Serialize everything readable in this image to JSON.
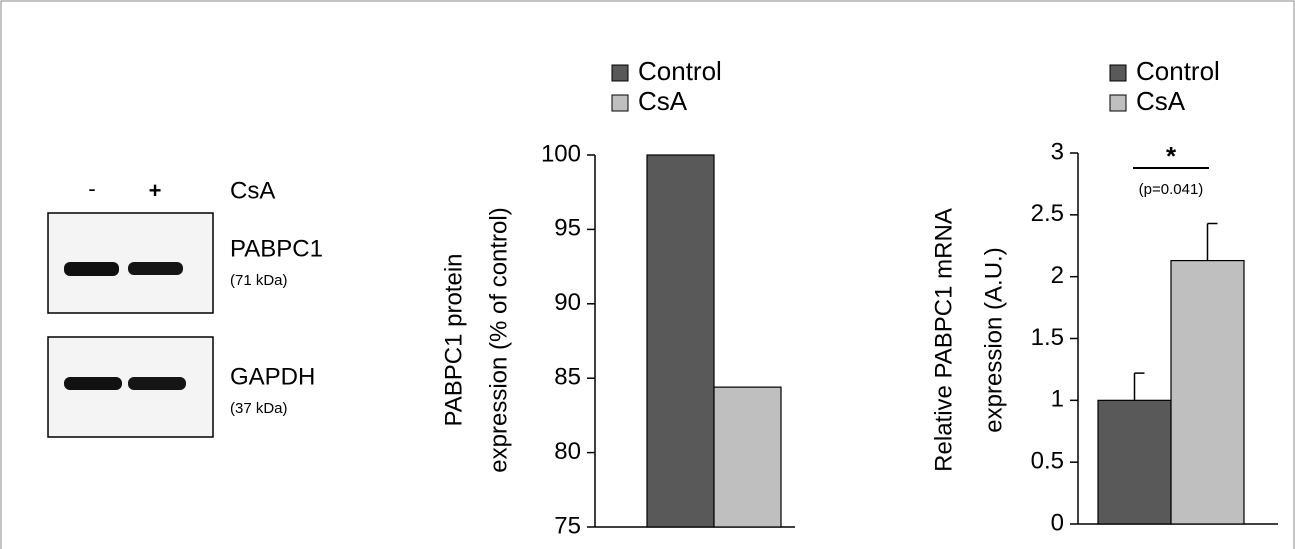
{
  "blot": {
    "lanes": [
      "-",
      "+"
    ],
    "treatment": "CsA",
    "bands": [
      {
        "name": "PABPC1",
        "size": "(71 kDa)"
      },
      {
        "name": "GAPDH",
        "size": "(37 kDa)"
      }
    ]
  },
  "chart_data": [
    {
      "type": "bar",
      "ylabel": [
        "PABPC1 protein",
        "expression  (% of control)"
      ],
      "ylim": [
        75,
        100
      ],
      "yticks": [
        75,
        80,
        85,
        90,
        95,
        100
      ],
      "series": [
        {
          "name": "Control",
          "color": "#595959",
          "values": [
            100
          ]
        },
        {
          "name": "CsA",
          "color": "#bfbfbf",
          "values": [
            84.4
          ]
        }
      ]
    },
    {
      "type": "bar",
      "ylabel": [
        "Relative PABPC1 mRNA",
        "expression  (A.U.)"
      ],
      "ylim": [
        0,
        3
      ],
      "yticks": [
        0,
        0.5,
        1,
        1.5,
        2,
        2.5,
        3
      ],
      "annotations": [
        "*",
        "(p=0.041)"
      ],
      "series": [
        {
          "name": "Control",
          "color": "#595959",
          "values": [
            1
          ],
          "errors": [
            0.22
          ]
        },
        {
          "name": "CsA",
          "color": "#bfbfbf",
          "values": [
            2.13
          ],
          "errors": [
            0.3
          ]
        }
      ]
    }
  ]
}
